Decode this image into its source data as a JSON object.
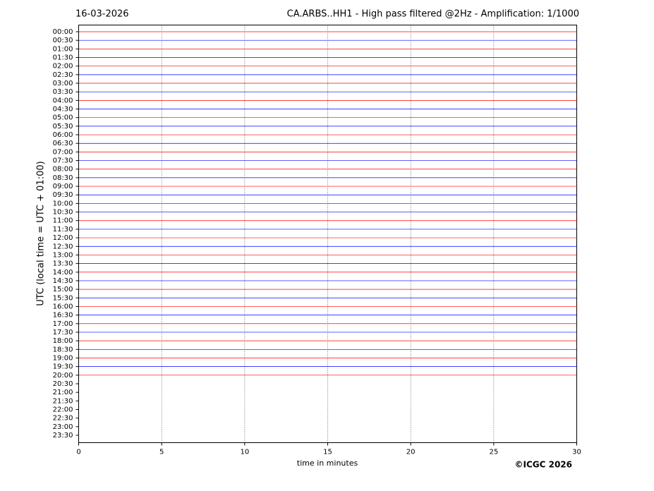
{
  "chart_data": {
    "type": "helicorder",
    "date": "16-03-2026",
    "title": "CA.ARBS..HH1 - High pass filtered @2Hz - Amplification: 1/1000",
    "y_label": "UTC (local time = UTC + 01:00)",
    "x_label": "time in minutes",
    "credit": "©ICGC 2026",
    "rows": [
      "00:00",
      "00:30",
      "01:00",
      "01:30",
      "02:00",
      "02:30",
      "03:00",
      "03:30",
      "04:00",
      "04:30",
      "05:00",
      "05:30",
      "06:00",
      "06:30",
      "07:00",
      "07:30",
      "08:00",
      "08:30",
      "09:00",
      "09:30",
      "10:00",
      "10:30",
      "11:00",
      "11:30",
      "12:00",
      "12:30",
      "13:00",
      "13:30",
      "14:00",
      "14:30",
      "15:00",
      "15:30",
      "16:00",
      "16:30",
      "17:00",
      "17:30",
      "18:00",
      "18:30",
      "19:00",
      "19:30",
      "20:00",
      "20:30",
      "21:00",
      "21:30",
      "22:00",
      "22:30",
      "23:00",
      "23:30"
    ],
    "last_trace": "20:00",
    "colors": [
      "#ff0000",
      "#0000ff"
    ],
    "xlim": [
      0,
      30
    ],
    "xticks": [
      0,
      5,
      10,
      15,
      20,
      25,
      30
    ],
    "grid": true
  }
}
